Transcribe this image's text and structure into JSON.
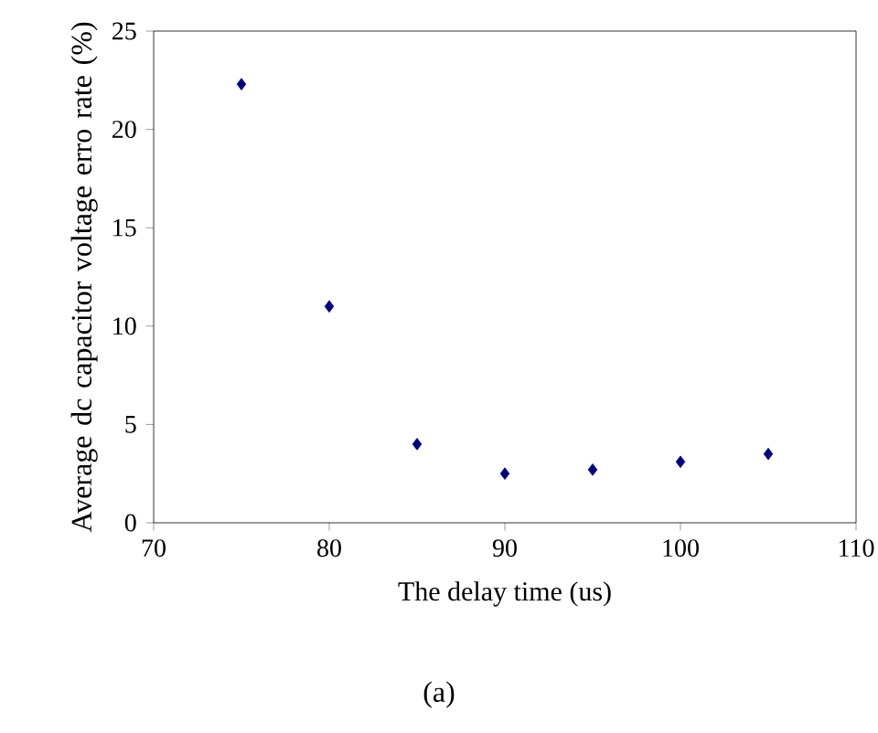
{
  "chart_data": {
    "type": "scatter",
    "xlabel": "The delay time (us)",
    "ylabel": "Average dc capacitor voltage erro rate (%)",
    "annotations": [
      "(a)"
    ],
    "x": [
      75,
      80,
      85,
      90,
      95,
      100,
      105
    ],
    "values": [
      22.3,
      11.0,
      4.0,
      2.5,
      2.7,
      3.1,
      3.5
    ],
    "color": "#000080",
    "marker": "diamond",
    "xlim": [
      70,
      110
    ],
    "xticks": [
      70,
      80,
      90,
      100,
      110
    ],
    "ylim": [
      0,
      25
    ],
    "yticks": [
      0,
      5,
      10,
      15,
      20,
      25
    ],
    "grid": false
  }
}
